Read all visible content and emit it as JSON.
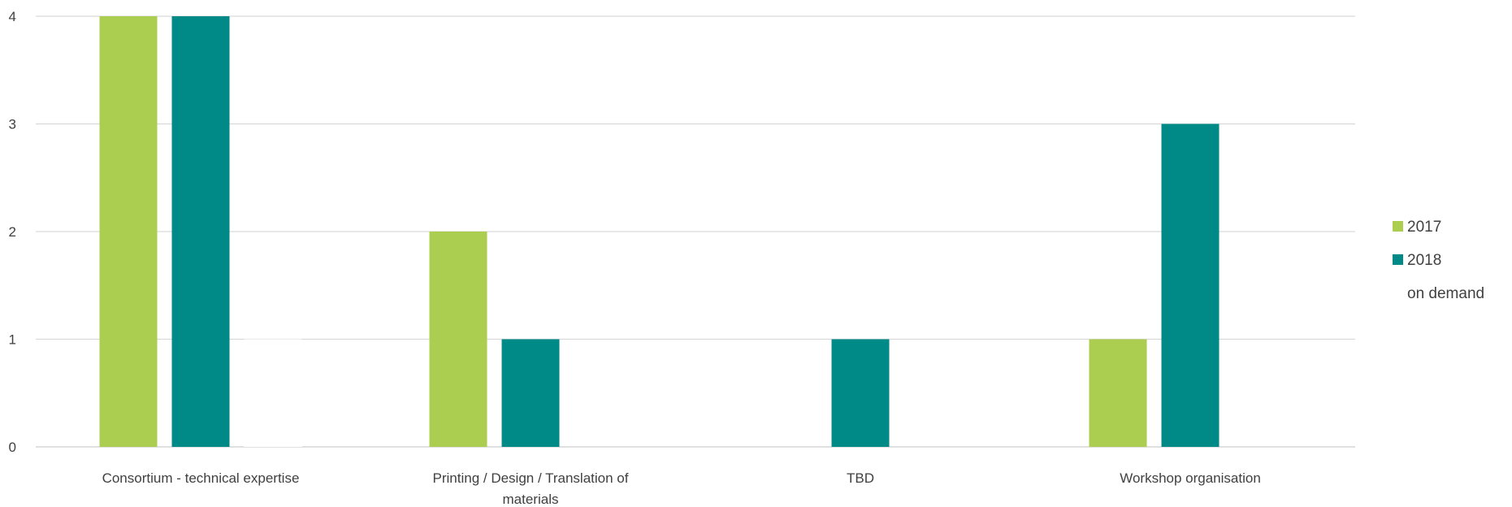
{
  "chart_data": {
    "type": "bar",
    "title": "",
    "xlabel": "",
    "ylabel": "",
    "ylim": [
      0,
      4
    ],
    "yticks": [
      "0",
      "1",
      "2",
      "3",
      "4"
    ],
    "grid": true,
    "legend_position": "right",
    "categories": [
      [
        "Consortium - technical expertise"
      ],
      [
        "Printing / Design / Translation of",
        "materials"
      ],
      [
        "TBD"
      ],
      [
        "Workshop organisation"
      ]
    ],
    "series": [
      {
        "name": "2017",
        "color": "#acce50",
        "values": [
          4,
          2,
          0,
          1
        ]
      },
      {
        "name": "2018",
        "color": "#008a87",
        "values": [
          4,
          1,
          1,
          3
        ]
      },
      {
        "name": "on demand",
        "color": "#ffffff",
        "values": [
          1,
          0,
          0,
          0
        ]
      }
    ]
  }
}
